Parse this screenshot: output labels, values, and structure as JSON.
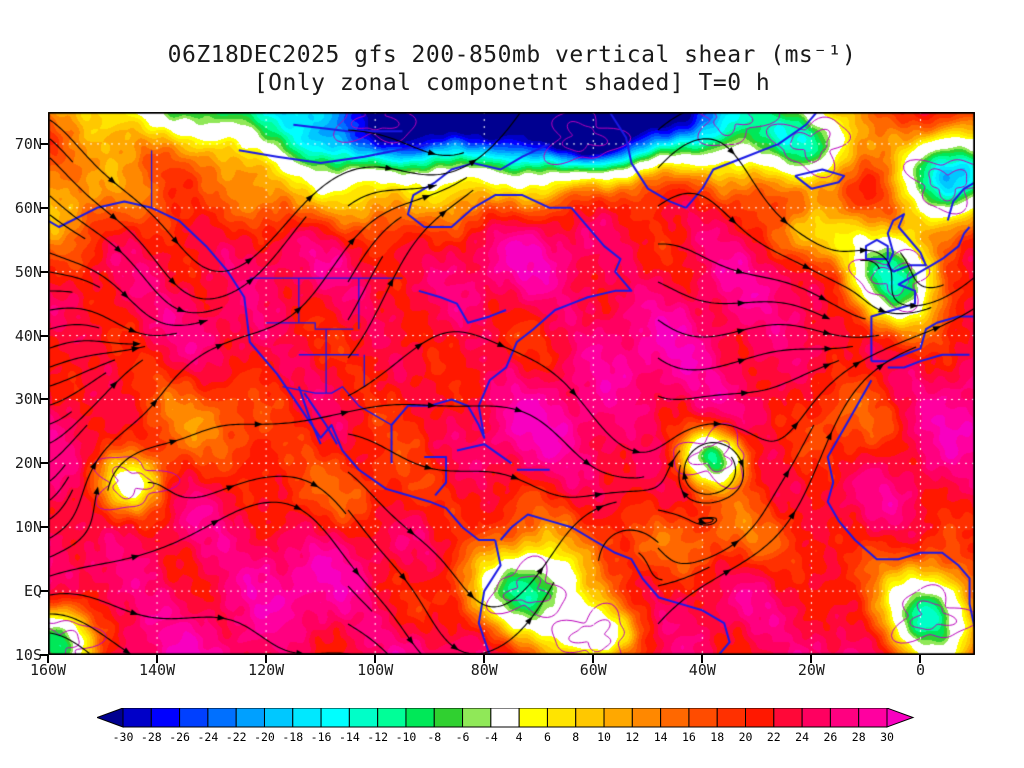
{
  "title": {
    "line1": "06Z18DEC2025 gfs 200-850mb vertical shear (ms⁻¹)",
    "line2": "[Only zonal componetnt shaded] T=0 h"
  },
  "chart_data": {
    "type": "heatmap",
    "title": "06Z18DEC2025 gfs 200-850mb vertical shear (ms⁻¹)",
    "subtitle": "[Only zonal componetnt shaded] T=0 h",
    "model": "gfs",
    "valid_time": "06Z18DEC2025",
    "forecast_hour": "T=0 h",
    "field_units": "ms⁻¹",
    "map_extent": {
      "lon": [
        -160,
        10
      ],
      "lat": [
        -10,
        75
      ]
    },
    "x_axis": {
      "ticks": [
        {
          "v": -160,
          "label": "160W"
        },
        {
          "v": -140,
          "label": "140W"
        },
        {
          "v": -120,
          "label": "120W"
        },
        {
          "v": -100,
          "label": "100W"
        },
        {
          "v": -80,
          "label": "80W"
        },
        {
          "v": -60,
          "label": "60W"
        },
        {
          "v": -40,
          "label": "40W"
        },
        {
          "v": -20,
          "label": "20W"
        },
        {
          "v": 0,
          "label": "0"
        }
      ]
    },
    "y_axis": {
      "ticks": [
        {
          "v": 70,
          "label": "70N"
        },
        {
          "v": 60,
          "label": "60N"
        },
        {
          "v": 50,
          "label": "50N"
        },
        {
          "v": 40,
          "label": "40N"
        },
        {
          "v": 30,
          "label": "30N"
        },
        {
          "v": 20,
          "label": "20N"
        },
        {
          "v": 10,
          "label": "10N"
        },
        {
          "v": 0,
          "label": "EQ"
        },
        {
          "v": -10,
          "label": "10S"
        }
      ]
    },
    "colorbar": {
      "levels": [
        -30,
        -28,
        -26,
        -24,
        -22,
        -20,
        -18,
        -16,
        -14,
        -12,
        -10,
        -8,
        -6,
        -4,
        4,
        6,
        8,
        10,
        12,
        14,
        16,
        18,
        20,
        22,
        24,
        26,
        28,
        30
      ],
      "labels": [
        "-30",
        "-28",
        "-26",
        "-24",
        "-22",
        "-20",
        "-18",
        "-16",
        "-14",
        "-12",
        "-10",
        "-8",
        "-6",
        "-4",
        "4",
        "6",
        "8",
        "10",
        "12",
        "14",
        "16",
        "18",
        "20",
        "22",
        "24",
        "26",
        "28",
        "30"
      ],
      "colors": [
        "#000090",
        "#0000c8",
        "#0000ff",
        "#0040ff",
        "#0070ff",
        "#00a0ff",
        "#00c8ff",
        "#00e8ff",
        "#00ffff",
        "#00ffc8",
        "#00ff98",
        "#00e858",
        "#30d030",
        "#90e858",
        "#ffffff",
        "#ffff00",
        "#ffe400",
        "#ffc800",
        "#ffa800",
        "#ff8800",
        "#ff6800",
        "#ff4c00",
        "#ff3000",
        "#ff1800",
        "#ff0838",
        "#ff0060",
        "#ff0080",
        "#ff00a0",
        "#f800c0"
      ]
    },
    "palette": {
      "coastline": "#1a1ae6",
      "state_borders": "#1a1ae6",
      "streamlines": "#000000",
      "secondary_contours": "#bb00bb",
      "grid_dots": "#ffffff",
      "background": "#ffffff",
      "frame": "#000000"
    },
    "legend_position": "bottom",
    "grid": "dotted-white-10deg-lat-20deg-lon"
  }
}
